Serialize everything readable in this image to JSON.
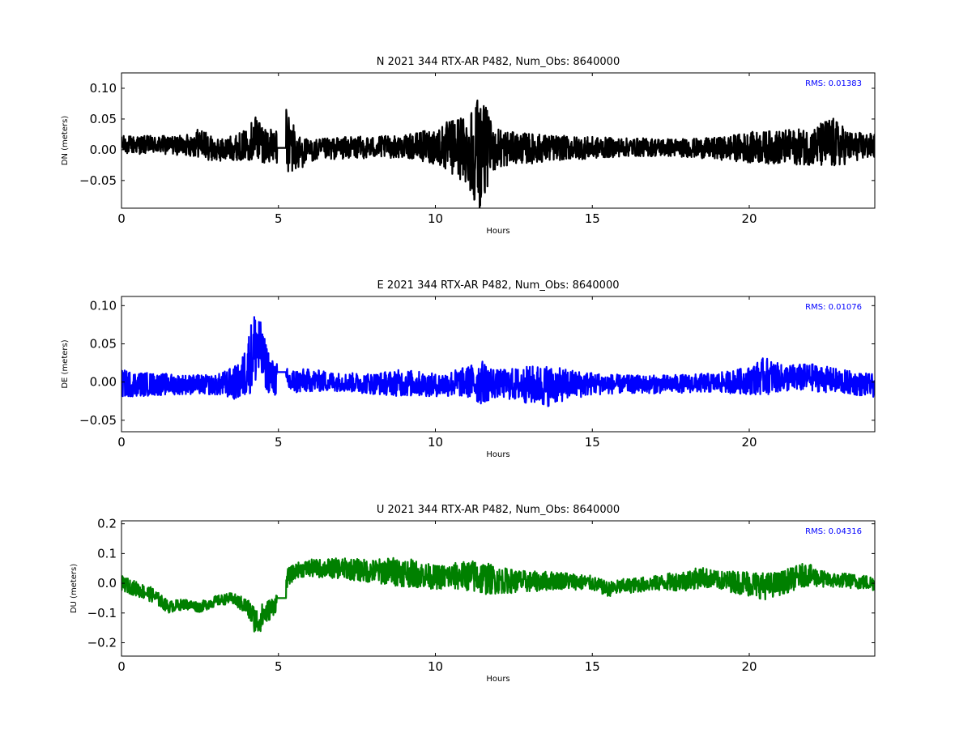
{
  "chart_data": [
    {
      "type": "line",
      "title": "N 2021 344 RTX-AR  P482, Num_Obs: 8640000",
      "xlabel": "Hours",
      "ylabel": "DN (meters)",
      "xlim": [
        0,
        24
      ],
      "ylim": [
        -0.095,
        0.125
      ],
      "xticks": [
        0,
        5,
        10,
        15,
        20
      ],
      "xtick_labels": [
        "0",
        "5",
        "10",
        "15",
        "20"
      ],
      "yticks": [
        -0.05,
        0.0,
        0.05,
        0.1
      ],
      "ytick_labels": [
        "−0.05",
        "0.00",
        "0.05",
        "0.10"
      ],
      "annotation": "RMS:  0.01383",
      "grid": false,
      "series": [
        {
          "color": "#000000",
          "gap": [
            4.95,
            5.25
          ],
          "gap_level": 0.003,
          "x": [
            0,
            1,
            2,
            2.5,
            3,
            3.5,
            4,
            4.3,
            4.6,
            4.9,
            5.3,
            5.6,
            6,
            7,
            8,
            9,
            10,
            10.5,
            11,
            11.4,
            11.8,
            12.5,
            13,
            14,
            15,
            16,
            17,
            18,
            19,
            20,
            21,
            22,
            22.6,
            23.2,
            24
          ],
          "center": [
            0.008,
            0.008,
            0.007,
            0.012,
            -0.002,
            0.003,
            0.008,
            0.022,
            0.008,
            0.004,
            0.013,
            -0.005,
            -0.002,
            0.003,
            0.004,
            0.005,
            0.006,
            0.004,
            0.002,
            0.0,
            0.002,
            0.003,
            0.002,
            0.003,
            0.003,
            0.004,
            0.004,
            0.003,
            0.002,
            0.004,
            0.004,
            0.005,
            0.01,
            0.005,
            0.006
          ],
          "amplitude": [
            0.015,
            0.015,
            0.016,
            0.025,
            0.018,
            0.02,
            0.025,
            0.04,
            0.03,
            0.025,
            0.06,
            0.03,
            0.018,
            0.018,
            0.018,
            0.018,
            0.03,
            0.045,
            0.06,
            0.1,
            0.04,
            0.025,
            0.025,
            0.02,
            0.018,
            0.015,
            0.015,
            0.015,
            0.018,
            0.025,
            0.028,
            0.03,
            0.045,
            0.025,
            0.02
          ]
        }
      ]
    },
    {
      "type": "line",
      "title": "E 2021 344 RTX-AR  P482, Num_Obs: 8640000",
      "xlabel": "Hours",
      "ylabel": "DE (meters)",
      "xlim": [
        0,
        24
      ],
      "ylim": [
        -0.065,
        0.112
      ],
      "xticks": [
        0,
        5,
        10,
        15,
        20
      ],
      "xtick_labels": [
        "0",
        "5",
        "10",
        "15",
        "20"
      ],
      "yticks": [
        -0.05,
        0.0,
        0.05,
        0.1
      ],
      "ytick_labels": [
        "−0.05",
        "0.00",
        "0.05",
        "0.10"
      ],
      "annotation": "RMS:  0.01076",
      "grid": false,
      "series": [
        {
          "color": "#0000ff",
          "gap": [
            4.95,
            5.25
          ],
          "gap_level": 0.013,
          "x": [
            0,
            1,
            2,
            3,
            3.8,
            4.1,
            4.3,
            4.5,
            4.8,
            5.3,
            6,
            7,
            8,
            9,
            10,
            11,
            11.4,
            12,
            13,
            13.5,
            14,
            15,
            16,
            17,
            18,
            19,
            20,
            20.5,
            21,
            22,
            23,
            24
          ],
          "center": [
            -0.002,
            -0.003,
            -0.003,
            -0.004,
            0.0,
            0.03,
            0.05,
            0.03,
            0.005,
            0.0,
            0.002,
            0.0,
            -0.002,
            -0.001,
            -0.004,
            0.0,
            0.0,
            -0.002,
            -0.004,
            -0.005,
            -0.004,
            -0.002,
            -0.003,
            -0.003,
            -0.002,
            -0.001,
            0.002,
            0.008,
            0.005,
            0.006,
            0.0,
            -0.005
          ],
          "amplitude": [
            0.018,
            0.015,
            0.013,
            0.013,
            0.025,
            0.045,
            0.055,
            0.035,
            0.025,
            0.018,
            0.015,
            0.012,
            0.014,
            0.018,
            0.015,
            0.02,
            0.03,
            0.018,
            0.025,
            0.028,
            0.022,
            0.015,
            0.012,
            0.012,
            0.012,
            0.013,
            0.018,
            0.025,
            0.018,
            0.018,
            0.016,
            0.015
          ]
        }
      ]
    },
    {
      "type": "line",
      "title": "U 2021 344 RTX-AR  P482, Num_Obs: 8640000",
      "xlabel": "Hours",
      "ylabel": "DU (meters)",
      "xlim": [
        0,
        24
      ],
      "ylim": [
        -0.245,
        0.21
      ],
      "xticks": [
        0,
        5,
        10,
        15,
        20
      ],
      "xtick_labels": [
        "0",
        "5",
        "10",
        "15",
        "20"
      ],
      "yticks": [
        -0.2,
        -0.1,
        0.0,
        0.1,
        0.2
      ],
      "ytick_labels": [
        "−0.2",
        "−0.1",
        "0.0",
        "0.1",
        "0.2"
      ],
      "annotation": "RMS:  0.04316",
      "grid": false,
      "series": [
        {
          "color": "#008000",
          "gap": [
            4.95,
            5.25
          ],
          "gap_level": -0.05,
          "x": [
            0,
            0.5,
            1,
            1.5,
            2,
            2.5,
            3,
            3.5,
            4,
            4.3,
            4.6,
            4.9,
            5.3,
            5.6,
            6,
            7,
            8,
            8.8,
            9.5,
            10,
            11,
            11.4,
            12,
            13,
            14,
            15,
            15.5,
            16,
            17,
            18,
            18.5,
            19,
            20,
            20.5,
            21,
            21.8,
            22.5,
            23,
            24
          ],
          "center": [
            0.0,
            -0.02,
            -0.04,
            -0.08,
            -0.07,
            -0.08,
            -0.06,
            -0.05,
            -0.08,
            -0.13,
            -0.1,
            -0.07,
            0.02,
            0.045,
            0.05,
            0.05,
            0.04,
            0.04,
            0.03,
            0.02,
            0.025,
            0.02,
            0.01,
            0.005,
            0.01,
            0.0,
            -0.02,
            -0.01,
            0.0,
            0.01,
            0.02,
            0.01,
            0.0,
            -0.01,
            0.0,
            0.03,
            0.01,
            0.01,
            0.0
          ],
          "amplitude": [
            0.025,
            0.025,
            0.025,
            0.02,
            0.018,
            0.018,
            0.018,
            0.018,
            0.03,
            0.05,
            0.04,
            0.03,
            0.03,
            0.025,
            0.03,
            0.035,
            0.04,
            0.05,
            0.045,
            0.04,
            0.05,
            0.06,
            0.045,
            0.035,
            0.03,
            0.025,
            0.025,
            0.025,
            0.025,
            0.035,
            0.035,
            0.03,
            0.045,
            0.045,
            0.04,
            0.04,
            0.025,
            0.025,
            0.025
          ]
        }
      ]
    }
  ]
}
